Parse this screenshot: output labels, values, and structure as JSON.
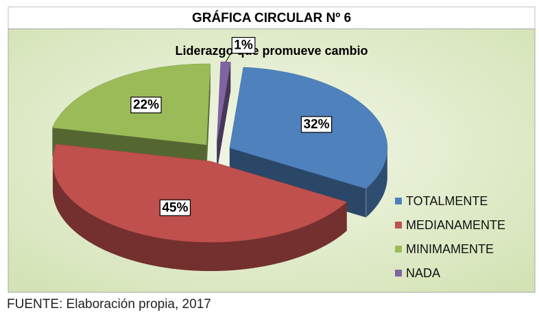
{
  "header": "GRÁFICA CIRCULAR Nº 6",
  "source": "FUENTE: Elaboración propia, 2017",
  "chart_data": {
    "type": "pie",
    "title": "Liderazgo que promueve cambio",
    "categories": [
      "TOTALMENTE",
      "MEDIANAMENTE",
      "MINIMAMENTE",
      "NADA"
    ],
    "values": [
      32,
      45,
      22,
      1
    ],
    "value_labels": [
      "32%",
      "45%",
      "22%",
      "1%"
    ],
    "colors": [
      "#4f81bd",
      "#c0504d",
      "#9bbb59",
      "#8064a2"
    ],
    "legend": "right"
  }
}
